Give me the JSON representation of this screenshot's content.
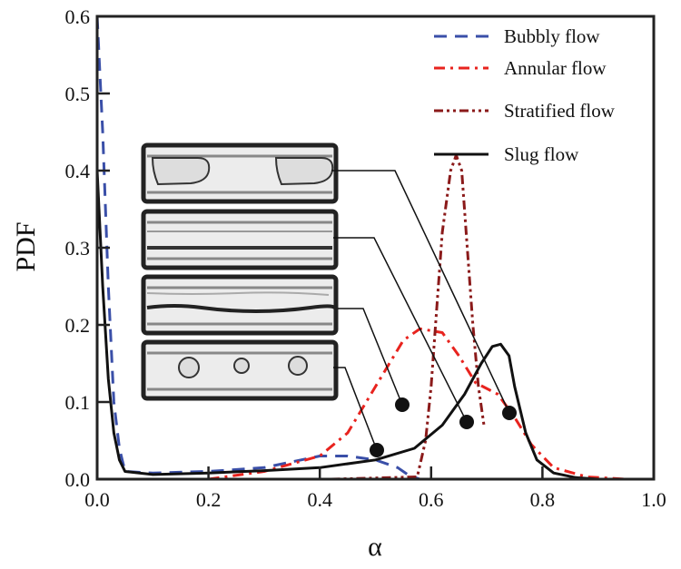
{
  "chart_data": {
    "type": "line",
    "title": "",
    "xlabel": "α",
    "ylabel": "PDF",
    "xlim": [
      0,
      1.0
    ],
    "ylim": [
      0,
      0.6
    ],
    "xticks": [
      "0.0",
      "0.2",
      "0.4",
      "0.6",
      "0.8",
      "1.0"
    ],
    "yticks": [
      "0.0",
      "0.1",
      "0.2",
      "0.3",
      "0.4",
      "0.5",
      "0.6"
    ],
    "grid": false,
    "legend_placement": "top-right",
    "series": [
      {
        "name": "Bubbly flow",
        "color": "#3a4fa8",
        "style": "dashed",
        "x": [
          0,
          0.01,
          0.02,
          0.03,
          0.04,
          0.05,
          0.1,
          0.2,
          0.3,
          0.4,
          0.45,
          0.5,
          0.54,
          0.56,
          0.58
        ],
        "y": [
          0.6,
          0.45,
          0.25,
          0.1,
          0.04,
          0.01,
          0.008,
          0.01,
          0.015,
          0.03,
          0.03,
          0.025,
          0.015,
          0.005,
          0
        ]
      },
      {
        "name": "Annular flow",
        "color": "#e8231e",
        "style": "dashdot",
        "x": [
          0.2,
          0.3,
          0.4,
          0.45,
          0.5,
          0.55,
          0.58,
          0.62,
          0.65,
          0.68,
          0.72,
          0.75,
          0.78,
          0.82,
          0.88,
          0.95,
          1.0
        ],
        "y": [
          0,
          0.01,
          0.03,
          0.06,
          0.12,
          0.18,
          0.195,
          0.19,
          0.16,
          0.125,
          0.11,
          0.08,
          0.045,
          0.015,
          0.003,
          0,
          0
        ]
      },
      {
        "name": "Stratified flow",
        "color": "#8b1a1a",
        "style": "dashdotdot",
        "x": [
          0.42,
          0.575,
          0.59,
          0.6,
          0.61,
          0.62,
          0.635,
          0.645,
          0.655,
          0.665,
          0.675,
          0.685,
          0.695
        ],
        "y": [
          0,
          0.003,
          0.05,
          0.12,
          0.22,
          0.32,
          0.4,
          0.42,
          0.4,
          0.3,
          0.2,
          0.12,
          0.07
        ]
      },
      {
        "name": "Slug flow",
        "color": "#111111",
        "style": "solid",
        "x": [
          0,
          0.01,
          0.02,
          0.03,
          0.04,
          0.05,
          0.1,
          0.2,
          0.3,
          0.4,
          0.5,
          0.57,
          0.62,
          0.66,
          0.69,
          0.71,
          0.725,
          0.74,
          0.75,
          0.77,
          0.79,
          0.82,
          0.86,
          0.9
        ],
        "y": [
          0.4,
          0.25,
          0.13,
          0.06,
          0.025,
          0.01,
          0.006,
          0.008,
          0.011,
          0.015,
          0.025,
          0.04,
          0.07,
          0.11,
          0.15,
          0.172,
          0.175,
          0.16,
          0.12,
          0.06,
          0.025,
          0.008,
          0.002,
          0
        ]
      }
    ]
  }
}
